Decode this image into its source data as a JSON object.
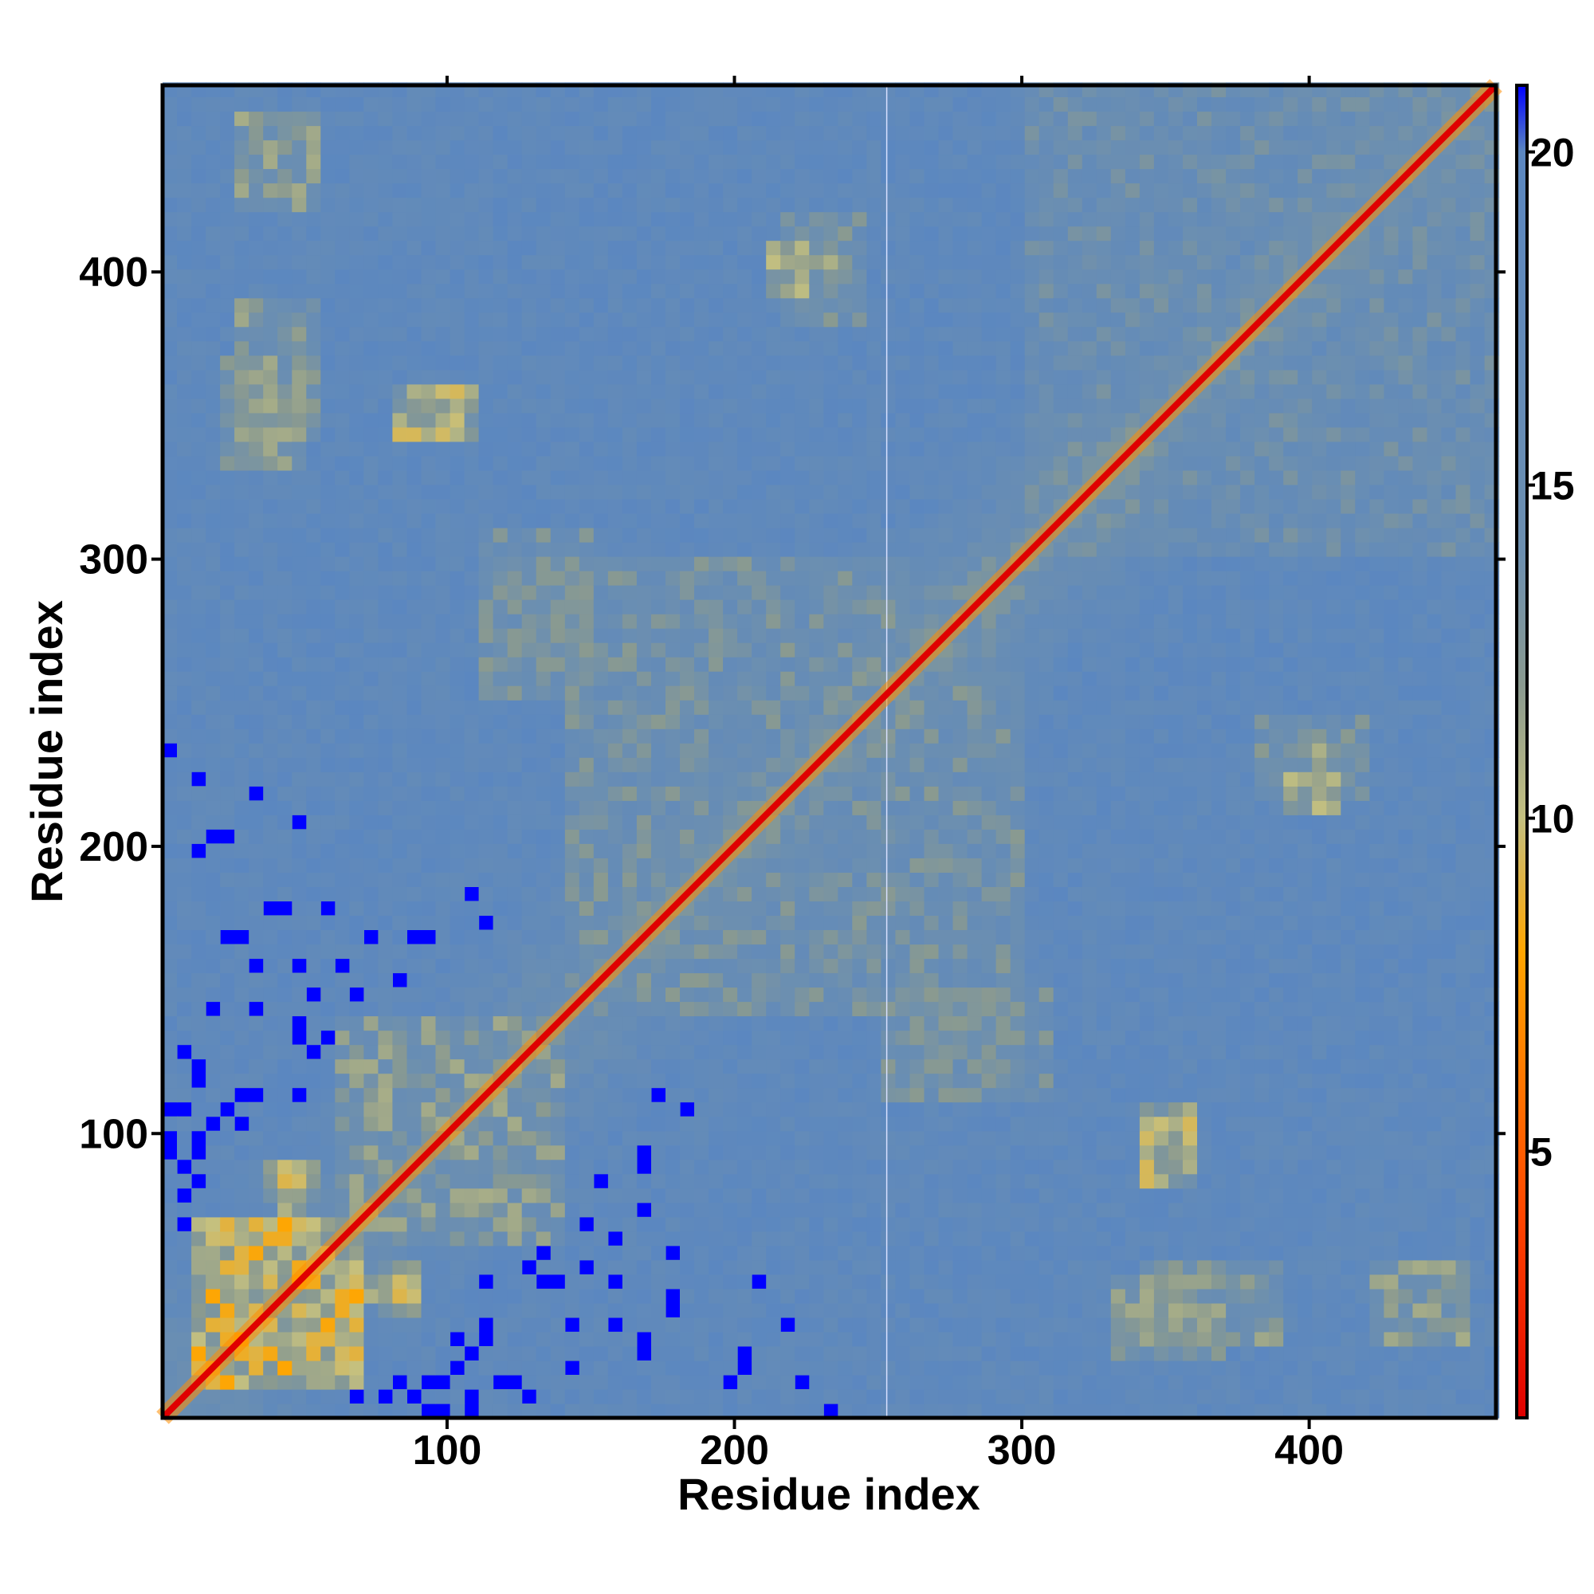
{
  "chart_data": {
    "type": "heatmap",
    "title": "",
    "xlabel": "Residue index",
    "ylabel": "Residue index",
    "n_residues": 465,
    "xlim": [
      1,
      465
    ],
    "ylim": [
      1,
      465
    ],
    "x_ticks": [
      100,
      200,
      300,
      400
    ],
    "y_ticks": [
      100,
      200,
      300,
      400
    ],
    "x_tick_labels": [
      "100",
      "200",
      "300",
      "400"
    ],
    "y_tick_labels": [
      "100",
      "200",
      "300",
      "400"
    ],
    "colorbar": {
      "range": [
        1,
        21
      ],
      "ticks": [
        5,
        10,
        15,
        20
      ],
      "tick_labels": [
        "5",
        "10",
        "15",
        "20"
      ],
      "colors": [
        {
          "value": 1,
          "color": "#e00000"
        },
        {
          "value": 4,
          "color": "#ff4500"
        },
        {
          "value": 8,
          "color": "#ffa500"
        },
        {
          "value": 10,
          "color": "#c4c080"
        },
        {
          "value": 12,
          "color": "#8a9a90"
        },
        {
          "value": 14,
          "color": "#6c8fb0"
        },
        {
          "value": 20,
          "color": "#5b87c0"
        },
        {
          "value": 21,
          "color": "#0000ff"
        }
      ],
      "saturation_color": "#0000ff"
    },
    "diagonal_value": 1,
    "gap_residue": 253,
    "contact_regions": [
      {
        "x": [
          10,
          70
        ],
        "y": [
          10,
          70
        ],
        "value": 8
      },
      {
        "x": [
          60,
          140
        ],
        "y": [
          60,
          140
        ],
        "value": 11
      },
      {
        "x": [
          140,
          300
        ],
        "y": [
          140,
          300
        ],
        "value": 12
      },
      {
        "x": [
          300,
          465
        ],
        "y": [
          300,
          465
        ],
        "value": 13
      },
      {
        "x": [
          20,
          50
        ],
        "y": [
          330,
          370
        ],
        "value": 11
      },
      {
        "x": [
          25,
          55
        ],
        "y": [
          425,
          455
        ],
        "value": 11
      },
      {
        "x": [
          40,
          50
        ],
        "y": [
          70,
          90
        ],
        "value": 9
      },
      {
        "x": [
          75,
          90
        ],
        "y": [
          35,
          55
        ],
        "value": 9
      },
      {
        "x": [
          340,
          390
        ],
        "y": [
          25,
          55
        ],
        "value": 11
      },
      {
        "x": [
          420,
          450
        ],
        "y": [
          25,
          55
        ],
        "value": 11
      },
      {
        "x": [
          310,
          350
        ],
        "y": [
          310,
          340
        ],
        "value": 12
      },
      {
        "x": [
          110,
          150
        ],
        "y": [
          250,
          300
        ],
        "value": 12
      },
      {
        "x": [
          260,
          310
        ],
        "y": [
          110,
          150
        ],
        "value": 12
      },
      {
        "x": [
          340,
          360
        ],
        "y": [
          80,
          110
        ],
        "value": 9
      },
      {
        "x": [
          390,
          410
        ],
        "y": [
          210,
          240
        ],
        "value": 10
      },
      {
        "x": [
          215,
          245
        ],
        "y": [
          380,
          420
        ],
        "value": 12
      }
    ]
  }
}
